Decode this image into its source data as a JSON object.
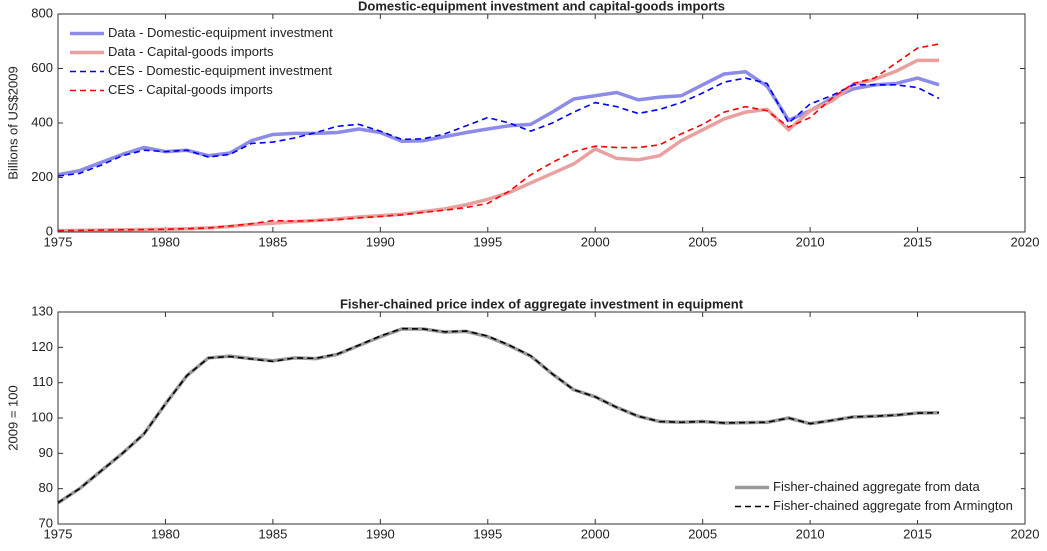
{
  "chart_data": [
    {
      "type": "line",
      "title": "Domestic-equipment investment and capital-goods imports",
      "y_label": "Billions of US$2009",
      "x": [
        1975,
        1976,
        1977,
        1978,
        1979,
        1980,
        1981,
        1982,
        1983,
        1984,
        1985,
        1986,
        1987,
        1988,
        1989,
        1990,
        1991,
        1992,
        1993,
        1994,
        1995,
        1996,
        1997,
        1998,
        1999,
        2000,
        2001,
        2002,
        2003,
        2004,
        2005,
        2006,
        2007,
        2008,
        2009,
        2010,
        2011,
        2012,
        2013,
        2014,
        2015,
        2016
      ],
      "xlim": [
        1975,
        2020
      ],
      "xticks": [
        1975,
        1980,
        1985,
        1990,
        1995,
        2000,
        2005,
        2010,
        2015,
        2020
      ],
      "ylim": [
        0,
        800
      ],
      "yticks": [
        0,
        200,
        400,
        600,
        800
      ],
      "legend": "upper left",
      "series": [
        {
          "name": "Data - Domestic-equipment investment",
          "color": "#8c8ce8",
          "style": "solid",
          "width": 3.5,
          "values": [
            210,
            225,
            255,
            285,
            310,
            295,
            300,
            280,
            290,
            335,
            358,
            362,
            362,
            365,
            378,
            365,
            333,
            335,
            350,
            365,
            378,
            390,
            395,
            440,
            488,
            500,
            512,
            485,
            495,
            500,
            540,
            580,
            588,
            535,
            410,
            445,
            490,
            525,
            540,
            545,
            565,
            540
          ]
        },
        {
          "name": "Data - Capital-goods imports",
          "color": "#eba0a0",
          "style": "solid",
          "width": 3.5,
          "values": [
            5,
            6,
            7,
            8,
            9,
            10,
            12,
            15,
            20,
            28,
            32,
            38,
            42,
            48,
            55,
            60,
            65,
            75,
            85,
            100,
            120,
            145,
            180,
            215,
            250,
            305,
            270,
            265,
            280,
            335,
            375,
            415,
            440,
            450,
            375,
            445,
            480,
            540,
            560,
            590,
            630,
            630
          ]
        },
        {
          "name": "CES - Domestic-equipment investment",
          "color": "#0000ff",
          "style": "dashed",
          "width": 1.6,
          "values": [
            205,
            215,
            245,
            280,
            300,
            295,
            300,
            275,
            285,
            325,
            330,
            345,
            365,
            388,
            395,
            370,
            340,
            342,
            360,
            390,
            420,
            400,
            370,
            400,
            440,
            475,
            460,
            435,
            450,
            475,
            510,
            550,
            565,
            545,
            400,
            470,
            500,
            540,
            540,
            540,
            530,
            490
          ]
        },
        {
          "name": "CES - Capital-goods imports",
          "color": "#ff0000",
          "style": "dashed",
          "width": 1.6,
          "values": [
            5,
            6,
            7,
            8,
            9,
            10,
            12,
            15,
            22,
            30,
            42,
            40,
            42,
            45,
            52,
            57,
            63,
            72,
            80,
            90,
            105,
            150,
            210,
            255,
            295,
            315,
            310,
            310,
            320,
            360,
            395,
            440,
            460,
            445,
            385,
            420,
            490,
            545,
            565,
            620,
            675,
            690
          ]
        }
      ]
    },
    {
      "type": "line",
      "title": "Fisher-chained price index of aggregate investment in equipment",
      "y_label": "2009 = 100",
      "x": [
        1975,
        1976,
        1977,
        1978,
        1979,
        1980,
        1981,
        1982,
        1983,
        1984,
        1985,
        1986,
        1987,
        1988,
        1989,
        1990,
        1991,
        1992,
        1993,
        1994,
        1995,
        1996,
        1997,
        1998,
        1999,
        2000,
        2001,
        2002,
        2003,
        2004,
        2005,
        2006,
        2007,
        2008,
        2009,
        2010,
        2011,
        2012,
        2013,
        2014,
        2015,
        2016
      ],
      "xlim": [
        1975,
        2020
      ],
      "xticks": [
        1975,
        1980,
        1985,
        1990,
        1995,
        2000,
        2005,
        2010,
        2015,
        2020
      ],
      "ylim": [
        70,
        130
      ],
      "yticks": [
        70,
        80,
        90,
        100,
        110,
        120,
        130
      ],
      "legend": "lower right",
      "series": [
        {
          "name": "Fisher-chained aggregate from data",
          "color": "#999999",
          "style": "solid",
          "width": 3.5,
          "values": [
            76,
            80,
            85,
            90,
            95.5,
            104,
            112,
            117,
            117.5,
            116.8,
            116.2,
            117,
            116.8,
            118,
            120.5,
            123,
            125.2,
            125.2,
            124.3,
            124.5,
            123,
            120.5,
            117.5,
            112.5,
            108,
            106,
            103,
            100.5,
            99,
            98.8,
            99,
            98.6,
            98.7,
            98.8,
            100,
            98.4,
            99.3,
            100.3,
            100.5,
            100.8,
            101.4,
            101.5
          ]
        },
        {
          "name": "Fisher-chained aggregate from Armington",
          "color": "#000000",
          "style": "dashed",
          "width": 1.6,
          "values": [
            76,
            80,
            85,
            90,
            95.5,
            104,
            112,
            117,
            117.4,
            116.7,
            116,
            117,
            116.9,
            118.1,
            120.6,
            123.2,
            125.3,
            125.2,
            124.4,
            124.6,
            123.2,
            120.6,
            117.6,
            112.5,
            108,
            106,
            103,
            100.5,
            99,
            98.8,
            99,
            98.6,
            98.7,
            98.8,
            100,
            98.4,
            99.3,
            100.3,
            100.5,
            100.8,
            101.4,
            101.5
          ]
        }
      ]
    }
  ]
}
